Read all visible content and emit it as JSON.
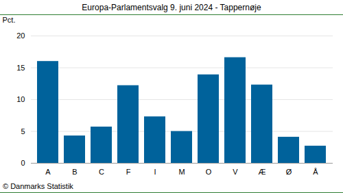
{
  "chart_data": {
    "type": "bar",
    "title": "Europa-Parlamentsvalg 9. juni 2024 - Tappernøje",
    "y_label": "Pct.",
    "caption": "© Danmarks Statistik",
    "categories": [
      "A",
      "B",
      "C",
      "F",
      "I",
      "M",
      "O",
      "V",
      "Æ",
      "Ø",
      "Å"
    ],
    "values": [
      16.0,
      4.3,
      5.7,
      12.2,
      7.3,
      5.0,
      13.9,
      16.6,
      12.3,
      4.1,
      2.7
    ],
    "color": "#00629b",
    "ylim": [
      0,
      20
    ],
    "yticks": [
      0,
      5,
      10,
      15,
      20
    ],
    "grid": true
  }
}
